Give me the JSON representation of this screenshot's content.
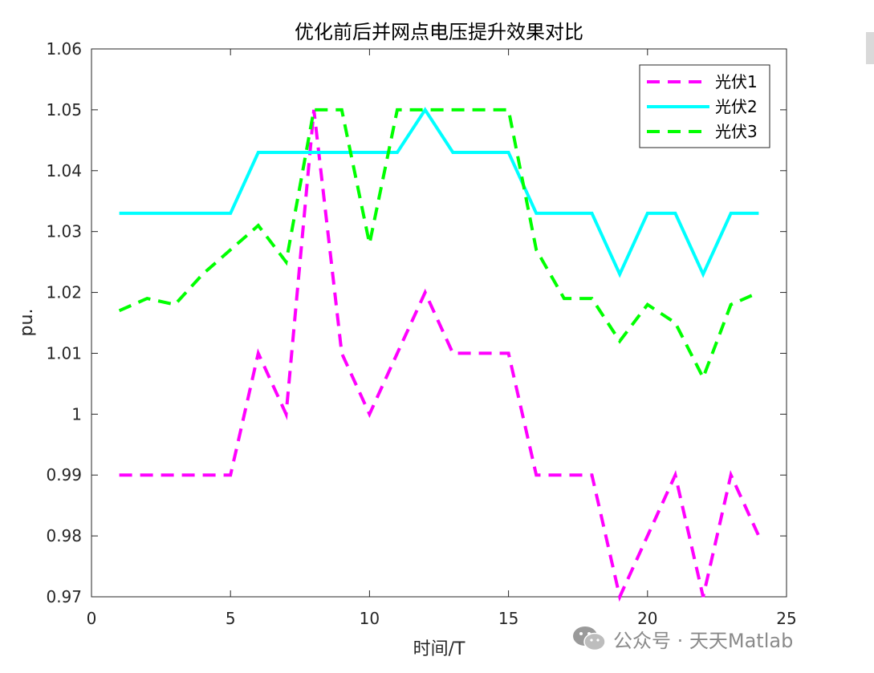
{
  "chart_data": {
    "type": "line",
    "title": "优化前后并网点电压提升效果对比",
    "xlabel": "时间/T",
    "ylabel": "pu.",
    "xlim": [
      0,
      25
    ],
    "ylim": [
      0.97,
      1.06
    ],
    "xticks": [
      0,
      5,
      10,
      15,
      20,
      25
    ],
    "xtick_labels": [
      "0",
      "5",
      "10",
      "15",
      "20",
      "25"
    ],
    "yticks": [
      0.97,
      0.98,
      0.99,
      1.0,
      1.01,
      1.02,
      1.03,
      1.04,
      1.05,
      1.06
    ],
    "ytick_labels": [
      "0.97",
      "0.98",
      "0.99",
      "1",
      "1.01",
      "1.02",
      "1.03",
      "1.04",
      "1.05",
      "1.06"
    ],
    "grid": false,
    "legend_position": "top-right",
    "x": [
      1,
      2,
      3,
      4,
      5,
      6,
      7,
      8,
      9,
      10,
      11,
      12,
      13,
      14,
      15,
      16,
      17,
      18,
      19,
      20,
      21,
      22,
      23,
      24
    ],
    "series": [
      {
        "name": "光伏1",
        "color": "#ff00ff",
        "dash": true,
        "values": [
          0.99,
          0.99,
          0.99,
          0.99,
          0.99,
          1.01,
          1.0,
          1.05,
          1.01,
          1.0,
          1.01,
          1.02,
          1.01,
          1.01,
          1.01,
          0.99,
          0.99,
          0.99,
          0.97,
          0.98,
          0.99,
          0.97,
          0.99,
          0.98
        ]
      },
      {
        "name": "光伏2",
        "color": "#00ffff",
        "dash": false,
        "values": [
          1.033,
          1.033,
          1.033,
          1.033,
          1.033,
          1.043,
          1.043,
          1.043,
          1.043,
          1.043,
          1.043,
          1.05,
          1.043,
          1.043,
          1.043,
          1.033,
          1.033,
          1.033,
          1.023,
          1.033,
          1.033,
          1.023,
          1.033,
          1.033
        ]
      },
      {
        "name": "光伏3",
        "color": "#00ff00",
        "dash": true,
        "values": [
          1.017,
          1.019,
          1.018,
          1.023,
          1.027,
          1.031,
          1.025,
          1.05,
          1.05,
          1.028,
          1.05,
          1.05,
          1.05,
          1.05,
          1.05,
          1.027,
          1.019,
          1.019,
          1.012,
          1.018,
          1.015,
          1.006,
          1.018,
          1.02
        ]
      }
    ]
  },
  "watermark": {
    "icon": "wechat-icon",
    "text": "公众号 · 天天Matlab"
  }
}
